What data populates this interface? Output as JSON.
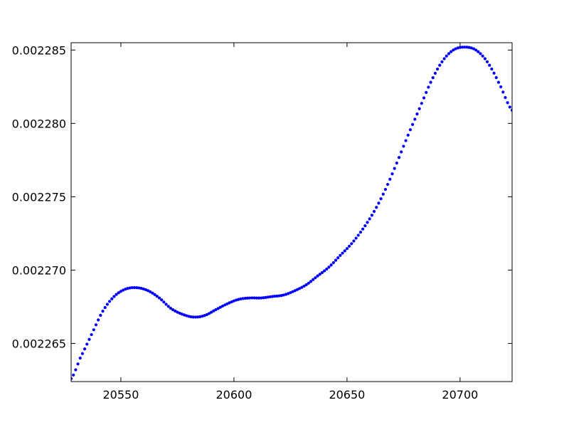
{
  "chart_data": {
    "type": "scatter",
    "title": "",
    "xlabel": "",
    "ylabel": "",
    "xlim": [
      20528,
      20723
    ],
    "ylim": [
      0.0022624,
      0.0022855
    ],
    "x_ticks": [
      {
        "value": 20550,
        "label": "20550"
      },
      {
        "value": 20600,
        "label": "20600"
      },
      {
        "value": 20650,
        "label": "20650"
      },
      {
        "value": 20700,
        "label": "20700"
      }
    ],
    "y_ticks": [
      {
        "value": 0.002265,
        "label": "0.002265"
      },
      {
        "value": 0.00227,
        "label": "0.002270"
      },
      {
        "value": 0.002275,
        "label": "0.002275"
      },
      {
        "value": 0.00228,
        "label": "0.002280"
      },
      {
        "value": 0.002285,
        "label": "0.002285"
      }
    ],
    "grid": false,
    "legend": "none",
    "marker_color": "#0000ff",
    "curve_keypoints": {
      "x": [
        20528,
        20532,
        20537,
        20542,
        20547,
        20552,
        20557,
        20562,
        20567,
        20572,
        20577,
        20582,
        20587,
        20592,
        20597,
        20602,
        20607,
        20612,
        20617,
        20622,
        20627,
        20632,
        20637,
        20642,
        20647,
        20652,
        20657,
        20662,
        20667,
        20672,
        20677,
        20682,
        20687,
        20692,
        20697,
        20702,
        20707,
        20712,
        20717,
        20723
      ],
      "y": [
        0.0022626,
        0.002264,
        0.0022656,
        0.0022672,
        0.0022682,
        0.0022687,
        0.0022688,
        0.0022686,
        0.0022681,
        0.0022674,
        0.002267,
        0.0022668,
        0.0022669,
        0.0022673,
        0.0022677,
        0.002268,
        0.0022681,
        0.0022681,
        0.0022682,
        0.0022683,
        0.0022686,
        0.002269,
        0.0022696,
        0.0022702,
        0.002271,
        0.0022718,
        0.0022728,
        0.002274,
        0.0022755,
        0.0022773,
        0.0022792,
        0.002281,
        0.0022828,
        0.0022842,
        0.002285,
        0.0022852,
        0.002285,
        0.0022842,
        0.0022828,
        0.0022809
      ]
    },
    "x_step": 1
  }
}
